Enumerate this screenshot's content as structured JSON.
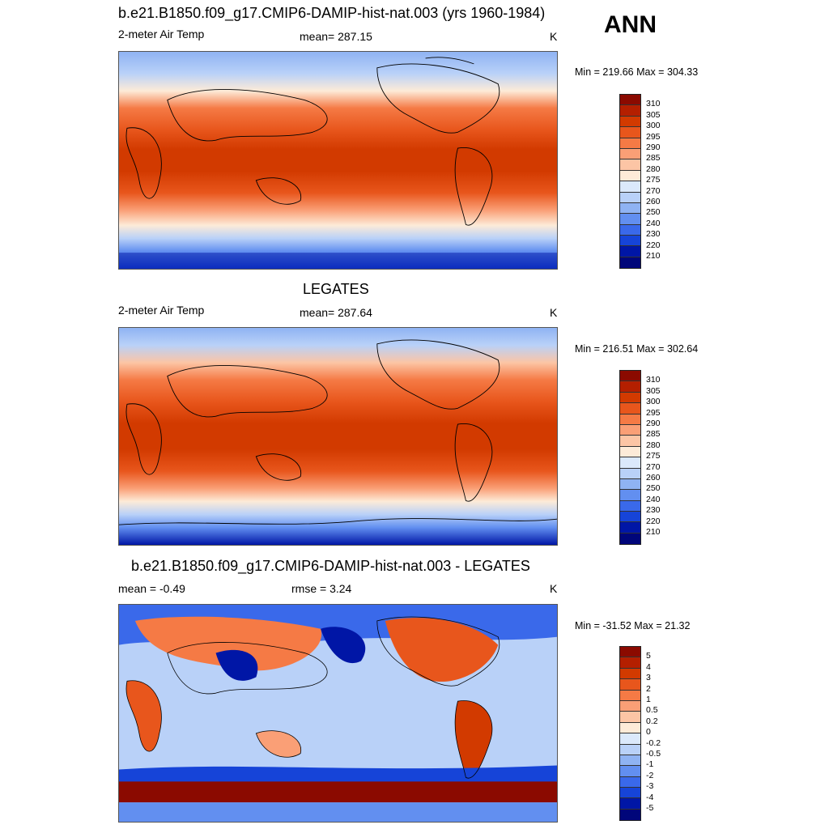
{
  "season": "ANN",
  "panels": [
    {
      "title": "b.e21.B1850.f09_g17.CMIP6-DAMIP-hist-nat.003 (yrs 1960-1984)",
      "left_label": "2-meter Air Temp",
      "center_label": "mean= 287.15",
      "units": "K",
      "minmax": "Min = 219.66 Max = 304.33",
      "colorbar": {
        "levels": [
          "310",
          "305",
          "300",
          "295",
          "290",
          "285",
          "280",
          "275",
          "270",
          "260",
          "250",
          "240",
          "230",
          "220",
          "210"
        ],
        "colors": [
          "#8b0a00",
          "#b41f00",
          "#d23a00",
          "#e8561c",
          "#f57a45",
          "#fa9f76",
          "#fcc5a5",
          "#fdebd8",
          "#dbe9fb",
          "#b9d1f8",
          "#8fb3f3",
          "#628ff0",
          "#3a69ea",
          "#1644d8",
          "#0016a6",
          "#00067a"
        ]
      }
    },
    {
      "title": "LEGATES",
      "left_label": "2-meter Air Temp",
      "center_label": "mean= 287.64",
      "units": "K",
      "minmax": "Min = 216.51 Max = 302.64",
      "colorbar": {
        "levels": [
          "310",
          "305",
          "300",
          "295",
          "290",
          "285",
          "280",
          "275",
          "270",
          "260",
          "250",
          "240",
          "230",
          "220",
          "210"
        ],
        "colors": [
          "#8b0a00",
          "#b41f00",
          "#d23a00",
          "#e8561c",
          "#f57a45",
          "#fa9f76",
          "#fcc5a5",
          "#fdebd8",
          "#dbe9fb",
          "#b9d1f8",
          "#8fb3f3",
          "#628ff0",
          "#3a69ea",
          "#1644d8",
          "#0016a6",
          "#00067a"
        ]
      }
    },
    {
      "title": "b.e21.B1850.f09_g17.CMIP6-DAMIP-hist-nat.003 - LEGATES",
      "left_label": "mean =  -0.49",
      "center_label": "rmse =   3.24",
      "units": "K",
      "minmax": "Min = -31.52 Max =  21.32",
      "colorbar": {
        "levels": [
          "5",
          "4",
          "3",
          "2",
          "1",
          "0.5",
          "0.2",
          "0",
          "-0.2",
          "-0.5",
          "-1",
          "-2",
          "-3",
          "-4",
          "-5"
        ],
        "colors": [
          "#8b0a00",
          "#b41f00",
          "#d23a00",
          "#e8561c",
          "#f57a45",
          "#fa9f76",
          "#fcc5a5",
          "#fdebd8",
          "#dbe9fb",
          "#b9d1f8",
          "#8fb3f3",
          "#628ff0",
          "#3a69ea",
          "#1644d8",
          "#0016a6",
          "#00067a"
        ]
      }
    }
  ]
}
